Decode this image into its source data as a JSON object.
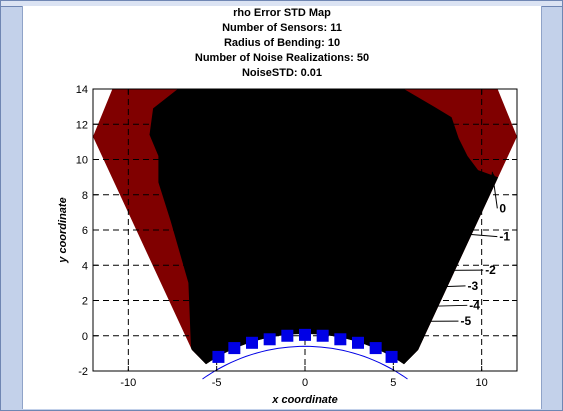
{
  "chart_data": {
    "type": "contour",
    "title_lines": [
      "rho Error STD Map",
      "Number of Sensors: 11",
      "Radius of Bending: 10",
      "Number of Noise Realizations: 50",
      "NoiseSTD: 0.01"
    ],
    "xlabel": "x coordinate",
    "ylabel": "y coordinate",
    "xlim": [
      -12,
      12
    ],
    "ylim": [
      -2,
      14
    ],
    "xticks": [
      -10,
      -5,
      0,
      5,
      10
    ],
    "yticks": [
      -2,
      0,
      2,
      4,
      6,
      8,
      10,
      12,
      14
    ],
    "grid": true,
    "levels": [
      {
        "label": "0",
        "color": "#800000"
      },
      {
        "label": "-1",
        "color": "#80ee80"
      },
      {
        "label": "-2",
        "color": "#3a9cf0"
      },
      {
        "label": "-3",
        "color": "#0a48f4"
      },
      {
        "label": "-4",
        "color": "#0000e6"
      },
      {
        "label": "-5",
        "color": "#0000c2"
      }
    ],
    "contour_labels": [
      {
        "text": "0",
        "x": 11.0,
        "y": 7.0,
        "arrow_to": [
          10.6,
          9.3
        ]
      },
      {
        "text": "-1",
        "x": 11.0,
        "y": 5.4,
        "arrow_to": [
          7.5,
          5.9
        ]
      },
      {
        "text": "-2",
        "x": 10.2,
        "y": 3.5,
        "arrow_to": [
          6.5,
          3.7
        ]
      },
      {
        "text": "-3",
        "x": 9.2,
        "y": 2.6,
        "arrow_to": [
          5.5,
          2.7
        ]
      },
      {
        "text": "-4",
        "x": 9.3,
        "y": 1.5,
        "arrow_to": [
          4.4,
          1.6
        ]
      },
      {
        "text": "-5",
        "x": 8.8,
        "y": 0.6,
        "arrow_to": [
          3.0,
          0.8
        ]
      }
    ],
    "sensors": {
      "marker": "square",
      "color": "#0000e6",
      "x": [
        -4.9,
        -4.0,
        -3.0,
        -2.0,
        -1.0,
        0.0,
        1.0,
        2.0,
        3.0,
        4.0,
        4.9
      ],
      "y": [
        -1.2,
        -0.7,
        -0.4,
        -0.2,
        0.0,
        0.05,
        0.0,
        -0.2,
        -0.4,
        -0.7,
        -1.2
      ]
    },
    "sensor_arc": {
      "center": [
        0,
        -9.9
      ],
      "radius": 10
    }
  }
}
